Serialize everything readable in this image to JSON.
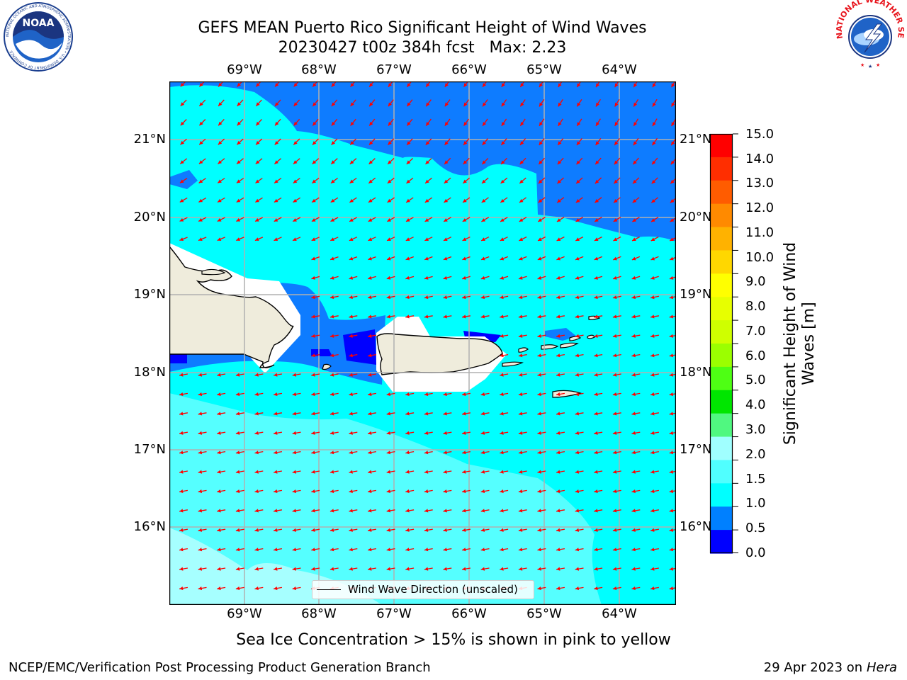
{
  "header": {
    "title_line1": "GEFS MEAN Puerto Rico Significant Height of Wind Waves",
    "title_line2": "20230427 t00z 384h fcst   Max: 2.23"
  },
  "logos": {
    "left": "NOAA",
    "left_ring_text": "NATIONAL OCEANIC AND ATMOSPHERIC ADMINISTRATION • U.S. DEPARTMENT OF COMMERCE",
    "right_ring_text": "NATIONAL WEATHER SERVICE"
  },
  "map": {
    "lon_labels": [
      "69°W",
      "68°W",
      "67°W",
      "66°W",
      "65°W",
      "64°W"
    ],
    "lat_labels": [
      "21°N",
      "20°N",
      "19°N",
      "18°N",
      "17°N",
      "16°N"
    ],
    "legend_label": "Wind Wave Direction (unscaled)",
    "arrow_color": "#ff0000",
    "land_color": "#efecdc"
  },
  "colorbar": {
    "label": "Significant Height of Wind Waves [m]",
    "ticks": [
      "15.0",
      "14.0",
      "13.0",
      "12.0",
      "11.0",
      "10.0",
      "9.0",
      "8.0",
      "7.0",
      "6.0",
      "5.0",
      "4.0",
      "3.0",
      "2.0",
      "1.5",
      "1.0",
      "0.5",
      "0.0"
    ],
    "colors": [
      "#ff0000",
      "#ff2e00",
      "#ff5c00",
      "#ff8a00",
      "#ffb200",
      "#ffd700",
      "#ffff00",
      "#e7ff00",
      "#cfff00",
      "#9bff00",
      "#4eff14",
      "#00e600",
      "#50f880",
      "#a0ffff",
      "#50ffff",
      "#00ffff",
      "#0080ff",
      "#0000ff"
    ]
  },
  "footer": {
    "sea_ice": "Sea Ice Concentration > 15% is shown in pink to yellow",
    "credit": "NCEP/EMC/Verification Post Processing Product Generation Branch",
    "date": "29 Apr 2023 on",
    "host": "Hera"
  }
}
